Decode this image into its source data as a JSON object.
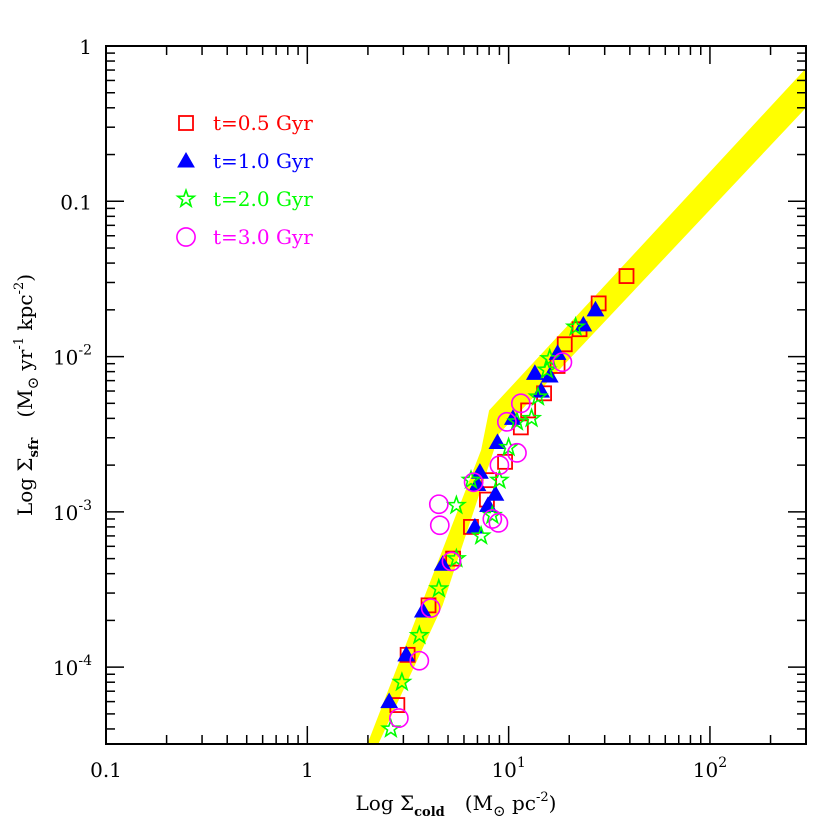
{
  "chart_data": {
    "type": "scatter",
    "x_scale": "log",
    "y_scale": "log",
    "xlim": [
      0.1,
      300
    ],
    "ylim": [
      3.2e-05,
      1
    ],
    "xlabel": {
      "prefix": "Log Σ",
      "sub": "cold",
      "unit_open": "(M",
      "unit_sym": "⊙",
      "unit_rest": " pc",
      "unit_exp": "-2",
      "unit_close": ")"
    },
    "ylabel": {
      "prefix": "Log Σ",
      "sub": "sfr",
      "unit_open": "(M",
      "unit_sym": "⊙",
      "unit_mid": " yr",
      "unit_exp1": "-1",
      "unit_mid2": " kpc",
      "unit_exp2": "-2",
      "unit_close": ")"
    },
    "x_ticks": [
      {
        "value": 0.1,
        "base": "0.1",
        "exp": ""
      },
      {
        "value": 1,
        "base": "1",
        "exp": ""
      },
      {
        "value": 10,
        "base": "10",
        "exp": "1"
      },
      {
        "value": 100,
        "base": "10",
        "exp": "2"
      }
    ],
    "y_ticks": [
      {
        "value": 1,
        "base": "1",
        "exp": ""
      },
      {
        "value": 0.1,
        "base": "0.1",
        "exp": ""
      },
      {
        "value": 0.01,
        "base": "10",
        "exp": "-2"
      },
      {
        "value": 0.001,
        "base": "10",
        "exp": "-3"
      },
      {
        "value": 0.0001,
        "base": "10",
        "exp": "-4"
      }
    ],
    "band": {
      "color": "#ffff00",
      "upper": [
        [
          1.95,
          3e-05
        ],
        [
          7.3,
          0.0025
        ],
        [
          8.0,
          0.0045
        ],
        [
          300,
          0.72
        ]
      ],
      "lower": [
        [
          300,
          0.4
        ],
        [
          9.0,
          0.0032
        ],
        [
          4.7,
          0.00025
        ],
        [
          2.2,
          3e-05
        ]
      ]
    },
    "series": [
      {
        "name": "t=0.5 Gyr",
        "marker": "square",
        "color": "#ff0000",
        "points": [
          [
            2.8,
            5.7e-05
          ],
          [
            3.15,
            0.00012
          ],
          [
            4.0,
            0.00025
          ],
          [
            5.3,
            0.0005
          ],
          [
            6.5,
            0.0008
          ],
          [
            7.8,
            0.0012
          ],
          [
            8.0,
            0.0016
          ],
          [
            9.6,
            0.0021
          ],
          [
            11.5,
            0.0035
          ],
          [
            12.5,
            0.0045
          ],
          [
            15.0,
            0.0058
          ],
          [
            17.5,
            0.0087
          ],
          [
            19.0,
            0.012
          ],
          [
            22.5,
            0.015
          ],
          [
            28.0,
            0.022
          ],
          [
            38.5,
            0.033
          ]
        ]
      },
      {
        "name": "t=1.0 Gyr",
        "marker": "triangle",
        "color": "#0000ff",
        "points": [
          [
            2.55,
            6e-05
          ],
          [
            3.1,
            0.00012
          ],
          [
            3.75,
            0.00023
          ],
          [
            4.7,
            0.00046
          ],
          [
            6.8,
            0.0008
          ],
          [
            7.0,
            0.0015
          ],
          [
            7.2,
            0.0018
          ],
          [
            7.9,
            0.0011
          ],
          [
            8.6,
            0.0013
          ],
          [
            8.8,
            0.0028
          ],
          [
            10.5,
            0.004
          ],
          [
            13.5,
            0.0078
          ],
          [
            14.5,
            0.006
          ],
          [
            16.0,
            0.0075
          ],
          [
            17.5,
            0.0105
          ],
          [
            23.5,
            0.016
          ],
          [
            27.0,
            0.02
          ]
        ]
      },
      {
        "name": "t=2.0 Gyr",
        "marker": "star",
        "color": "#00ff00",
        "points": [
          [
            2.6,
            4e-05
          ],
          [
            2.95,
            8e-05
          ],
          [
            3.6,
            0.00016
          ],
          [
            4.5,
            0.00032
          ],
          [
            5.5,
            0.0005
          ],
          [
            5.5,
            0.0011
          ],
          [
            6.5,
            0.0016
          ],
          [
            7.3,
            0.0007
          ],
          [
            8.3,
            0.00095
          ],
          [
            9.0,
            0.0016
          ],
          [
            10.0,
            0.0026
          ],
          [
            11.0,
            0.0038
          ],
          [
            13.0,
            0.004
          ],
          [
            14.0,
            0.0055
          ],
          [
            15.5,
            0.0082
          ],
          [
            16.0,
            0.0097
          ],
          [
            21.5,
            0.0155
          ]
        ]
      },
      {
        "name": "t=3.0 Gyr",
        "marker": "circle",
        "color": "#ff00ff",
        "points": [
          [
            2.85,
            4.7e-05
          ],
          [
            3.6,
            0.00011
          ],
          [
            4.1,
            0.00024
          ],
          [
            4.5,
            0.00112
          ],
          [
            4.55,
            0.00082
          ],
          [
            5.2,
            0.00048
          ],
          [
            6.7,
            0.00155
          ],
          [
            8.3,
            0.0009
          ],
          [
            8.9,
            0.00085
          ],
          [
            9.0,
            0.002
          ],
          [
            9.8,
            0.0038
          ],
          [
            11.0,
            0.0024
          ],
          [
            11.5,
            0.005
          ],
          [
            18.5,
            0.0092
          ]
        ]
      }
    ],
    "legend": {
      "position": "top-left"
    }
  }
}
